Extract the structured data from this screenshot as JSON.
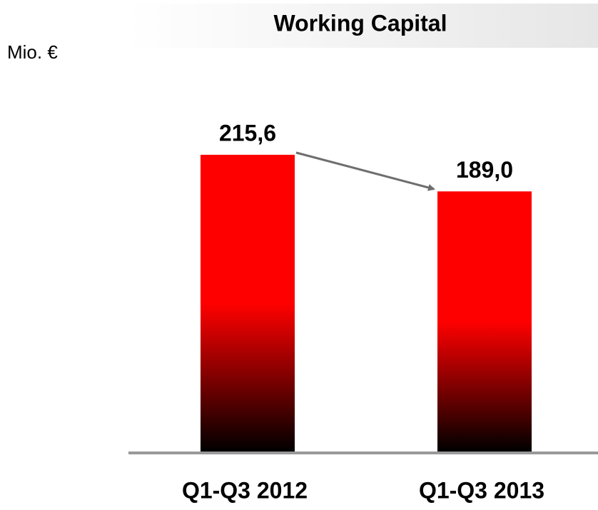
{
  "chart_data": {
    "type": "bar",
    "title": "Working Capital",
    "unit_label": "Mio. €",
    "categories": [
      "Q1-Q3 2012",
      "Q1-Q3 2013"
    ],
    "values": [
      215.6,
      189.0
    ],
    "value_labels": [
      "215,6",
      "189,0"
    ],
    "color": "#ff0000"
  }
}
